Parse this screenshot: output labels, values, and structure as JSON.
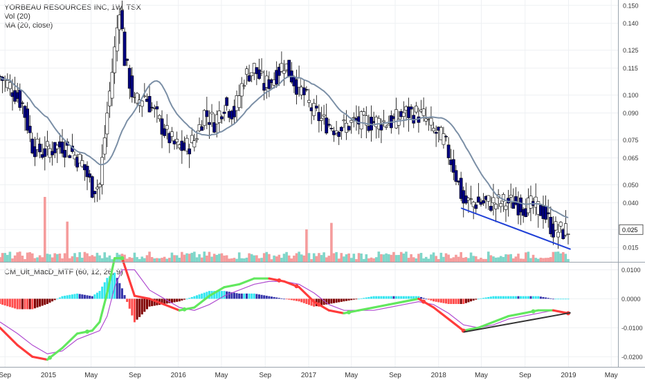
{
  "header": {
    "title": "YORBEAU RESOURCES INC, 1W, TSX",
    "volume_label": "Vol (20)",
    "ma_label": "MA (20, close)"
  },
  "indicator": {
    "label": "CM_Ult_MacD_MTF (60, 12, 26, 9)"
  },
  "colors": {
    "up_candle": "#ffffff",
    "down_candle": "#000080",
    "candle_outline": "#000000",
    "ma_line": "#7b8fa6",
    "volume_up": "#7fd6c9",
    "volume_down": "#f59c9c",
    "trendline_price": "#1f3fd6",
    "trendline_macd": "#333333",
    "macd_up": "#62e85e",
    "macd_down": "#ff3b3b",
    "signal": "#b04bd0",
    "hist_pos_strong": "#33e6f0",
    "hist_pos_weak": "#3333aa",
    "hist_neg_strong": "#ff4b4b",
    "hist_neg_weak": "#800000",
    "last_price_box": "#ffffff"
  },
  "last_price_label": "0.025",
  "chart_data": [
    {
      "type": "candlestick",
      "title": "YORBEAU RESOURCES INC, 1W, TSX",
      "xlabel": "",
      "ylabel": "",
      "ylim": [
        0.007,
        0.153
      ],
      "y_ticks": [
        "0.150",
        "0.140",
        "0.125",
        "0.115",
        "0.100",
        "0.090",
        "0.075",
        "0.065",
        "0.050",
        "0.040",
        "0.025",
        "0.015"
      ],
      "y_tick_values": [
        0.15,
        0.14,
        0.125,
        0.115,
        0.1,
        0.09,
        0.075,
        0.065,
        0.05,
        0.04,
        0.025,
        0.015
      ],
      "x_ticks": [
        {
          "label": "Sep",
          "date": "2014-09-01"
        },
        {
          "label": "2015",
          "date": "2015-01-01"
        },
        {
          "label": "May",
          "date": "2015-05-01"
        },
        {
          "label": "Sep",
          "date": "2015-09-01"
        },
        {
          "label": "2016",
          "date": "2016-01-01"
        },
        {
          "label": "May",
          "date": "2016-05-01"
        },
        {
          "label": "Sep",
          "date": "2016-09-01"
        },
        {
          "label": "2017",
          "date": "2017-01-01"
        },
        {
          "label": "May",
          "date": "2017-05-01"
        },
        {
          "label": "Sep",
          "date": "2017-09-01"
        },
        {
          "label": "2018",
          "date": "2018-01-01"
        },
        {
          "label": "May",
          "date": "2018-05-01"
        },
        {
          "label": "Sep",
          "date": "2018-09-01"
        },
        {
          "label": "2019",
          "date": "2019-01-01"
        },
        {
          "label": "May",
          "date": "2019-05-01"
        }
      ],
      "x_range": [
        "2014-08-18",
        "2019-05-20"
      ],
      "close_anchors": [
        [
          "2014-08-18",
          0.11
        ],
        [
          "2014-09-15",
          0.105
        ],
        [
          "2014-10-20",
          0.095
        ],
        [
          "2014-11-17",
          0.072
        ],
        [
          "2014-12-15",
          0.068
        ],
        [
          "2015-01-12",
          0.07
        ],
        [
          "2015-02-09",
          0.072
        ],
        [
          "2015-03-09",
          0.068
        ],
        [
          "2015-04-06",
          0.062
        ],
        [
          "2015-05-04",
          0.048
        ],
        [
          "2015-05-25",
          0.05
        ],
        [
          "2015-06-15",
          0.09
        ],
        [
          "2015-07-06",
          0.125
        ],
        [
          "2015-07-20",
          0.15
        ],
        [
          "2015-08-03",
          0.12
        ],
        [
          "2015-08-31",
          0.095
        ],
        [
          "2015-09-28",
          0.1
        ],
        [
          "2015-10-26",
          0.09
        ],
        [
          "2015-11-23",
          0.08
        ],
        [
          "2015-12-21",
          0.072
        ],
        [
          "2016-01-18",
          0.07
        ],
        [
          "2016-02-15",
          0.075
        ],
        [
          "2016-03-14",
          0.09
        ],
        [
          "2016-04-11",
          0.085
        ],
        [
          "2016-05-09",
          0.095
        ],
        [
          "2016-06-06",
          0.09
        ],
        [
          "2016-07-04",
          0.11
        ],
        [
          "2016-08-01",
          0.115
        ],
        [
          "2016-08-29",
          0.105
        ],
        [
          "2016-09-26",
          0.11
        ],
        [
          "2016-10-24",
          0.118
        ],
        [
          "2016-11-21",
          0.108
        ],
        [
          "2016-12-19",
          0.1
        ],
        [
          "2017-01-16",
          0.09
        ],
        [
          "2017-02-13",
          0.085
        ],
        [
          "2017-03-13",
          0.082
        ],
        [
          "2017-04-10",
          0.082
        ],
        [
          "2017-05-08",
          0.085
        ],
        [
          "2017-06-05",
          0.085
        ],
        [
          "2017-07-03",
          0.085
        ],
        [
          "2017-07-31",
          0.085
        ],
        [
          "2017-08-28",
          0.085
        ],
        [
          "2017-09-25",
          0.09
        ],
        [
          "2017-10-23",
          0.09
        ],
        [
          "2017-11-20",
          0.088
        ],
        [
          "2017-12-18",
          0.08
        ],
        [
          "2018-01-15",
          0.075
        ],
        [
          "2018-02-12",
          0.06
        ],
        [
          "2018-03-12",
          0.04
        ],
        [
          "2018-04-09",
          0.04
        ],
        [
          "2018-05-07",
          0.04
        ],
        [
          "2018-06-04",
          0.04
        ],
        [
          "2018-07-02",
          0.04
        ],
        [
          "2018-07-30",
          0.04
        ],
        [
          "2018-08-27",
          0.038
        ],
        [
          "2018-09-24",
          0.038
        ],
        [
          "2018-10-22",
          0.035
        ],
        [
          "2018-11-19",
          0.025
        ],
        [
          "2018-12-17",
          0.024
        ],
        [
          "2018-12-31",
          0.025
        ]
      ],
      "moving_average": {
        "name": "MA (20, close)",
        "period_weeks": 20
      },
      "trendline": {
        "start": [
          "2018-03-05",
          0.037
        ],
        "end": [
          "2019-01-07",
          0.014
        ]
      },
      "volume": {
        "name": "Vol (20)",
        "spikes": [
          [
            "2014-12-22",
            1.0
          ],
          [
            "2015-02-23",
            0.62
          ],
          [
            "2016-12-26",
            0.5
          ],
          [
            "2017-03-06",
            0.6
          ]
        ]
      }
    },
    {
      "type": "line",
      "title": "CM_Ult_MacD_MTF (60, 12, 26, 9)",
      "xlabel": "",
      "ylabel": "",
      "ylim": [
        -0.0235,
        0.0125
      ],
      "y_ticks": [
        "0.0100",
        "0.0000",
        "-0.0100",
        "-0.0200"
      ],
      "y_tick_values": [
        0.01,
        0.0,
        -0.01,
        -0.02
      ],
      "series": [
        {
          "name": "MACD",
          "points": [
            [
              "2014-08-18",
              -0.01
            ],
            [
              "2014-10-06",
              -0.016
            ],
            [
              "2014-11-17",
              -0.02
            ],
            [
              "2014-12-29",
              -0.021
            ],
            [
              "2015-02-09",
              -0.017
            ],
            [
              "2015-03-23",
              -0.012
            ],
            [
              "2015-05-04",
              -0.011
            ],
            [
              "2015-05-25",
              -0.008
            ],
            [
              "2015-06-15",
              0.002
            ],
            [
              "2015-07-06",
              0.014
            ],
            [
              "2015-07-27",
              0.014
            ],
            [
              "2015-08-31",
              0.001
            ],
            [
              "2015-10-12",
              0.0
            ],
            [
              "2015-11-23",
              -0.002
            ],
            [
              "2016-01-04",
              -0.004
            ],
            [
              "2016-02-15",
              -0.003
            ],
            [
              "2016-03-28",
              0.001
            ],
            [
              "2016-05-09",
              0.004
            ],
            [
              "2016-06-20",
              0.005
            ],
            [
              "2016-08-01",
              0.007
            ],
            [
              "2016-09-12",
              0.007
            ],
            [
              "2016-10-24",
              0.006
            ],
            [
              "2016-12-05",
              0.004
            ],
            [
              "2017-01-16",
              -0.001
            ],
            [
              "2017-02-27",
              -0.004
            ],
            [
              "2017-04-10",
              -0.005
            ],
            [
              "2017-05-22",
              -0.004
            ],
            [
              "2017-07-03",
              -0.003
            ],
            [
              "2017-08-14",
              -0.002
            ],
            [
              "2017-09-25",
              -0.001
            ],
            [
              "2017-11-06",
              0.0
            ],
            [
              "2017-12-18",
              -0.003
            ],
            [
              "2018-01-29",
              -0.007
            ],
            [
              "2018-03-12",
              -0.011
            ],
            [
              "2018-04-23",
              -0.01
            ],
            [
              "2018-06-04",
              -0.008
            ],
            [
              "2018-07-16",
              -0.006
            ],
            [
              "2018-08-27",
              -0.005
            ],
            [
              "2018-10-08",
              -0.004
            ],
            [
              "2018-11-19",
              -0.004
            ],
            [
              "2018-12-31",
              -0.005
            ]
          ]
        },
        {
          "name": "Signal",
          "points": [
            [
              "2014-08-18",
              -0.008
            ],
            [
              "2014-10-06",
              -0.012
            ],
            [
              "2014-11-17",
              -0.016
            ],
            [
              "2014-12-29",
              -0.019
            ],
            [
              "2015-02-09",
              -0.018
            ],
            [
              "2015-03-23",
              -0.014
            ],
            [
              "2015-05-04",
              -0.012
            ],
            [
              "2015-05-25",
              -0.011
            ],
            [
              "2015-06-15",
              -0.006
            ],
            [
              "2015-07-06",
              0.004
            ],
            [
              "2015-07-27",
              0.01
            ],
            [
              "2015-08-31",
              0.01
            ],
            [
              "2015-10-12",
              0.003
            ],
            [
              "2015-11-23",
              0.0
            ],
            [
              "2016-01-04",
              -0.003
            ],
            [
              "2016-02-15",
              -0.004
            ],
            [
              "2016-03-28",
              -0.002
            ],
            [
              "2016-05-09",
              0.001
            ],
            [
              "2016-06-20",
              0.003
            ],
            [
              "2016-08-01",
              0.005
            ],
            [
              "2016-09-12",
              0.006
            ],
            [
              "2016-10-24",
              0.006
            ],
            [
              "2016-12-05",
              0.005
            ],
            [
              "2017-01-16",
              0.002
            ],
            [
              "2017-02-27",
              -0.002
            ],
            [
              "2017-04-10",
              -0.004
            ],
            [
              "2017-05-22",
              -0.004
            ],
            [
              "2017-07-03",
              -0.004
            ],
            [
              "2017-08-14",
              -0.003
            ],
            [
              "2017-09-25",
              -0.002
            ],
            [
              "2017-11-06",
              -0.001
            ],
            [
              "2017-12-18",
              -0.002
            ],
            [
              "2018-01-29",
              -0.005
            ],
            [
              "2018-03-12",
              -0.009
            ],
            [
              "2018-04-23",
              -0.01
            ],
            [
              "2018-06-04",
              -0.009
            ],
            [
              "2018-07-16",
              -0.007
            ],
            [
              "2018-08-27",
              -0.006
            ],
            [
              "2018-10-08",
              -0.005
            ],
            [
              "2018-11-19",
              -0.004
            ],
            [
              "2018-12-31",
              -0.005
            ]
          ]
        }
      ],
      "cross_points": [
        "2015-01-05",
        "2015-04-20",
        "2015-07-27",
        "2016-01-18",
        "2016-10-10",
        "2016-11-28",
        "2017-01-30",
        "2017-04-24",
        "2017-11-20",
        "2018-03-12",
        "2018-09-24",
        "2018-12-31"
      ],
      "trendline": {
        "start": [
          "2018-03-12",
          -0.0115
        ],
        "end": [
          "2019-01-07",
          -0.0048
        ]
      }
    }
  ]
}
